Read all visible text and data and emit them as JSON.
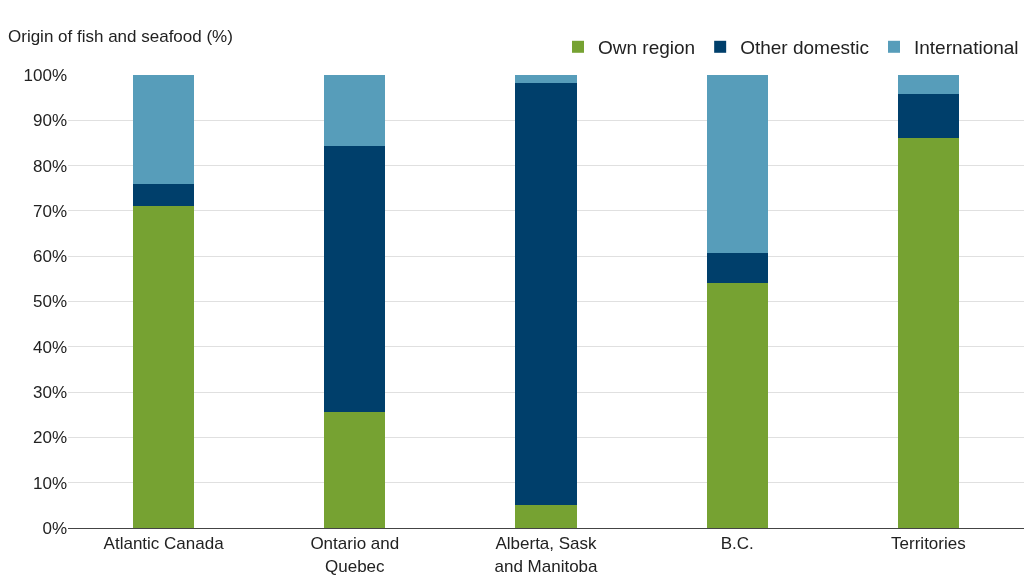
{
  "chart_data": {
    "type": "bar",
    "stacked": true,
    "ylabel": "Origin of fish and seafood (%)",
    "categories": [
      "Atlantic Canada",
      "Ontario and Quebec",
      "Alberta, Sask and Manitoba",
      "B.C.",
      "Territories"
    ],
    "series": [
      {
        "name": "Own region",
        "color": "#76a232",
        "values": [
          71,
          25.5,
          5,
          54.1,
          86
        ]
      },
      {
        "name": "Other domestic",
        "color": "#003f6b",
        "values": [
          5,
          58.8,
          93.2,
          6.7,
          9.8
        ]
      },
      {
        "name": "International",
        "color": "#579dba",
        "values": [
          24,
          15.7,
          1.8,
          39.2,
          4.2
        ]
      }
    ],
    "ylim": [
      0,
      100
    ],
    "yticks": [
      {
        "value": 0,
        "label": "0%"
      },
      {
        "value": 10,
        "label": "10%"
      },
      {
        "value": 20,
        "label": "20%"
      },
      {
        "value": 30,
        "label": "30%"
      },
      {
        "value": 40,
        "label": "40%"
      },
      {
        "value": 50,
        "label": "50%"
      },
      {
        "value": 60,
        "label": "60%"
      },
      {
        "value": 70,
        "label": "70%"
      },
      {
        "value": 80,
        "label": "80%"
      },
      {
        "value": 90,
        "label": "90%"
      },
      {
        "value": 100,
        "label": "100%"
      }
    ],
    "grid": "y",
    "legend": "top right"
  }
}
